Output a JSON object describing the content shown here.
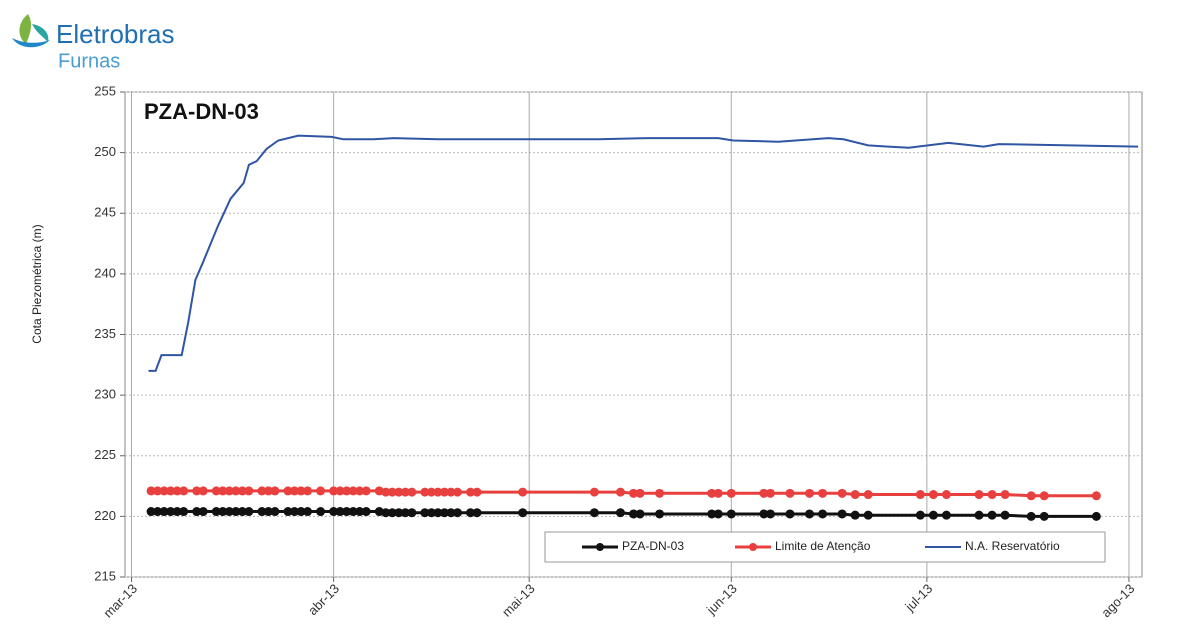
{
  "header": {
    "brand": "Eletrobras",
    "sub": "Furnas"
  },
  "chart_data": {
    "type": "line",
    "title": "PZA-DN-03",
    "y_label": "Cota Piezométrica (m)",
    "xlim": [
      -1,
      155
    ],
    "xticks": [
      {
        "value": 0,
        "label": "mar-13"
      },
      {
        "value": 31,
        "label": "abr-13"
      },
      {
        "value": 61,
        "label": "mai-13"
      },
      {
        "value": 92,
        "label": "jun-13"
      },
      {
        "value": 122,
        "label": "jul-13"
      },
      {
        "value": 153,
        "label": "ago-13"
      }
    ],
    "ylim": [
      215,
      255
    ],
    "yticks": [
      215,
      220,
      225,
      230,
      235,
      240,
      245,
      250,
      255
    ],
    "grid": true,
    "legend": "bottom-right",
    "series": [
      {
        "name": "PZA-DN-03",
        "color": "#111111",
        "markers": true,
        "x": [
          3,
          4,
          5,
          6,
          7,
          8,
          10,
          11,
          13,
          14,
          15,
          16,
          17,
          18,
          20,
          21,
          22,
          24,
          25,
          26,
          27,
          29,
          31,
          32,
          33,
          34,
          35,
          36,
          38,
          39,
          40,
          41,
          42,
          43,
          45,
          46,
          47,
          48,
          49,
          50,
          52,
          53,
          60,
          71,
          75,
          77,
          78,
          81,
          89,
          90,
          92,
          97,
          98,
          101,
          104,
          106,
          109,
          111,
          113,
          121,
          123,
          125,
          130,
          132,
          134,
          138,
          140,
          148
        ],
        "values": [
          220.4,
          220.4,
          220.4,
          220.4,
          220.4,
          220.4,
          220.4,
          220.4,
          220.4,
          220.4,
          220.4,
          220.4,
          220.4,
          220.4,
          220.4,
          220.4,
          220.4,
          220.4,
          220.4,
          220.4,
          220.4,
          220.4,
          220.4,
          220.4,
          220.4,
          220.4,
          220.4,
          220.4,
          220.4,
          220.3,
          220.3,
          220.3,
          220.3,
          220.3,
          220.3,
          220.3,
          220.3,
          220.3,
          220.3,
          220.3,
          220.3,
          220.3,
          220.3,
          220.3,
          220.3,
          220.2,
          220.2,
          220.2,
          220.2,
          220.2,
          220.2,
          220.2,
          220.2,
          220.2,
          220.2,
          220.2,
          220.2,
          220.1,
          220.1,
          220.1,
          220.1,
          220.1,
          220.1,
          220.1,
          220.1,
          220.0,
          220.0,
          220.0
        ]
      },
      {
        "name": "Limite de Atenção",
        "color": "#e8403f",
        "markers": true,
        "x": [
          3,
          4,
          5,
          6,
          7,
          8,
          10,
          11,
          13,
          14,
          15,
          16,
          17,
          18,
          20,
          21,
          22,
          24,
          25,
          26,
          27,
          29,
          31,
          32,
          33,
          34,
          35,
          36,
          38,
          39,
          40,
          41,
          42,
          43,
          45,
          46,
          47,
          48,
          49,
          50,
          52,
          53,
          60,
          71,
          75,
          77,
          78,
          81,
          89,
          90,
          92,
          97,
          98,
          101,
          104,
          106,
          109,
          111,
          113,
          121,
          123,
          125,
          130,
          132,
          134,
          138,
          140,
          148
        ],
        "values": [
          222.1,
          222.1,
          222.1,
          222.1,
          222.1,
          222.1,
          222.1,
          222.1,
          222.1,
          222.1,
          222.1,
          222.1,
          222.1,
          222.1,
          222.1,
          222.1,
          222.1,
          222.1,
          222.1,
          222.1,
          222.1,
          222.1,
          222.1,
          222.1,
          222.1,
          222.1,
          222.1,
          222.1,
          222.1,
          222.0,
          222.0,
          222.0,
          222.0,
          222.0,
          222.0,
          222.0,
          222.0,
          222.0,
          222.0,
          222.0,
          222.0,
          222.0,
          222.0,
          222.0,
          222.0,
          221.9,
          221.9,
          221.9,
          221.9,
          221.9,
          221.9,
          221.9,
          221.9,
          221.9,
          221.9,
          221.9,
          221.9,
          221.8,
          221.8,
          221.8,
          221.8,
          221.8,
          221.8,
          221.8,
          221.8,
          221.7,
          221.7,
          221.7
        ]
      },
      {
        "name": "N.A. Reservatório",
        "color": "#2f55a4",
        "markers": false,
        "x": [
          2.6,
          3.7,
          4.6,
          7.7,
          8.7,
          9.8,
          11,
          13.3,
          15.2,
          17.2,
          18,
          19.2,
          20.7,
          22.5,
          25.6,
          30.7,
          32.5,
          37.1,
          40.2,
          47,
          53.2,
          71.6,
          79.3,
          90,
          92.3,
          99.2,
          106.9,
          109.2,
          113,
          119.2,
          125.3,
          130.7,
          133,
          154.4
        ],
        "values": [
          232,
          232,
          233.3,
          233.3,
          236,
          239.5,
          241,
          244,
          246.2,
          247.5,
          249,
          249.3,
          250.3,
          251,
          251.4,
          251.3,
          251.1,
          251.1,
          251.2,
          251.1,
          251.1,
          251.1,
          251.2,
          251.2,
          251,
          250.9,
          251.2,
          251.1,
          250.6,
          250.4,
          250.8,
          250.5,
          250.7,
          250.5
        ]
      }
    ]
  }
}
